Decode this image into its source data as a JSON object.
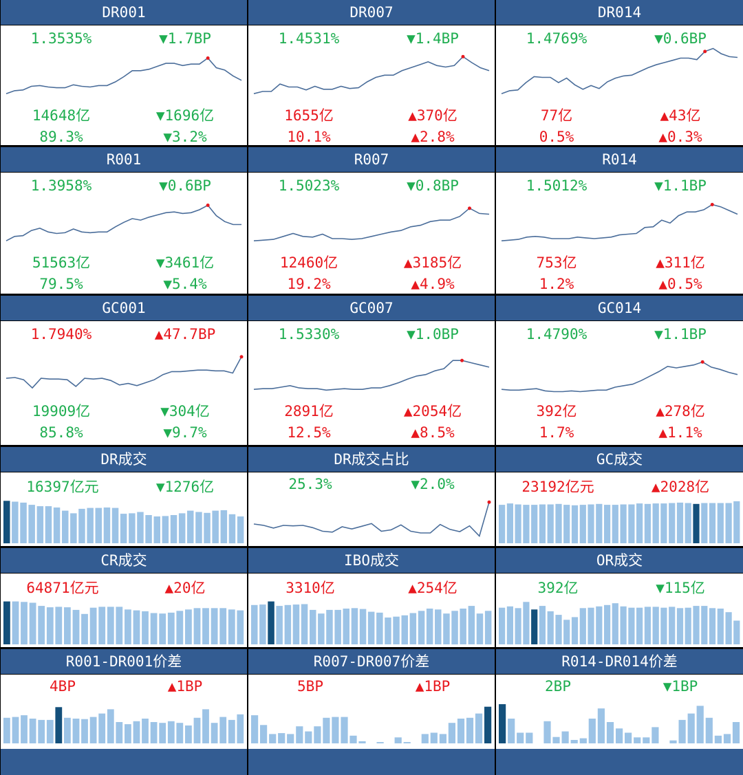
{
  "colors": {
    "header": "#335c92",
    "up": "#e8181e",
    "down": "#1fae51",
    "line": "#4a6d9a",
    "bar": "#9cc3e6",
    "bar_hi": "#14507b",
    "peak": "#e8181e"
  },
  "rows": [
    {
      "panels": [
        {
          "title": "DR001",
          "rate": "1.3535%",
          "rate_color": "down",
          "rate_chg": "▼1.7BP",
          "rate_chg_color": "down",
          "vol": "14648亿",
          "vol_color": "down",
          "vol_chg": "▼1696亿",
          "vol_chg_color": "down",
          "share": "89.3%",
          "share_color": "down",
          "share_chg": "▼3.2%",
          "share_chg_color": "down"
        },
        {
          "title": "DR007",
          "rate": "1.4531%",
          "rate_color": "down",
          "rate_chg": "▼1.4BP",
          "rate_chg_color": "down",
          "vol": "1655亿",
          "vol_color": "up",
          "vol_chg": "▲370亿",
          "vol_chg_color": "up",
          "share": "10.1%",
          "share_color": "up",
          "share_chg": "▲2.8%",
          "share_chg_color": "up"
        },
        {
          "title": "DR014",
          "rate": "1.4769%",
          "rate_color": "down",
          "rate_chg": "▼0.6BP",
          "rate_chg_color": "down",
          "vol": "77亿",
          "vol_color": "up",
          "vol_chg": "▲43亿",
          "vol_chg_color": "up",
          "share": "0.5%",
          "share_color": "up",
          "share_chg": "▲0.3%",
          "share_chg_color": "up"
        }
      ]
    },
    {
      "panels": [
        {
          "title": "R001",
          "rate": "1.3958%",
          "rate_color": "down",
          "rate_chg": "▼0.6BP",
          "rate_chg_color": "down",
          "vol": "51563亿",
          "vol_color": "down",
          "vol_chg": "▼3461亿",
          "vol_chg_color": "down",
          "share": "79.5%",
          "share_color": "down",
          "share_chg": "▼5.4%",
          "share_chg_color": "down"
        },
        {
          "title": "R007",
          "rate": "1.5023%",
          "rate_color": "down",
          "rate_chg": "▼0.8BP",
          "rate_chg_color": "down",
          "vol": "12460亿",
          "vol_color": "up",
          "vol_chg": "▲3185亿",
          "vol_chg_color": "up",
          "share": "19.2%",
          "share_color": "up",
          "share_chg": "▲4.9%",
          "share_chg_color": "up"
        },
        {
          "title": "R014",
          "rate": "1.5012%",
          "rate_color": "down",
          "rate_chg": "▼1.1BP",
          "rate_chg_color": "down",
          "vol": "753亿",
          "vol_color": "up",
          "vol_chg": "▲311亿",
          "vol_chg_color": "up",
          "share": "1.2%",
          "share_color": "up",
          "share_chg": "▲0.5%",
          "share_chg_color": "up"
        }
      ]
    },
    {
      "panels": [
        {
          "title": "GC001",
          "rate": "1.7940%",
          "rate_color": "up",
          "rate_chg": "▲47.7BP",
          "rate_chg_color": "up",
          "vol": "19909亿",
          "vol_color": "down",
          "vol_chg": "▼304亿",
          "vol_chg_color": "down",
          "share": "85.8%",
          "share_color": "down",
          "share_chg": "▼9.7%",
          "share_chg_color": "down"
        },
        {
          "title": "GC007",
          "rate": "1.5330%",
          "rate_color": "down",
          "rate_chg": "▼1.0BP",
          "rate_chg_color": "down",
          "vol": "2891亿",
          "vol_color": "up",
          "vol_chg": "▲2054亿",
          "vol_chg_color": "up",
          "share": "12.5%",
          "share_color": "up",
          "share_chg": "▲8.5%",
          "share_chg_color": "up"
        },
        {
          "title": "GC014",
          "rate": "1.4790%",
          "rate_color": "down",
          "rate_chg": "▼1.1BP",
          "rate_chg_color": "down",
          "vol": "392亿",
          "vol_color": "up",
          "vol_chg": "▲278亿",
          "vol_chg_color": "up",
          "share": "1.7%",
          "share_color": "up",
          "share_chg": "▲1.1%",
          "share_chg_color": "up"
        }
      ]
    },
    {
      "panels": [
        {
          "title": "DR成交",
          "value": "16397亿元",
          "value_color": "down",
          "chg": "▼1276亿",
          "chg_color": "down"
        },
        {
          "title": "DR成交占比",
          "value": "25.3%",
          "value_color": "down",
          "chg": "▼2.0%",
          "chg_color": "down"
        },
        {
          "title": "GC成交",
          "value": "23192亿元",
          "value_color": "up",
          "chg": "▲2028亿",
          "chg_color": "up"
        }
      ]
    },
    {
      "panels": [
        {
          "title": "CR成交",
          "value": "64871亿元",
          "value_color": "up",
          "chg": "▲20亿",
          "chg_color": "up"
        },
        {
          "title": "IBO成交",
          "value": "3310亿",
          "value_color": "up",
          "chg": "▲254亿",
          "chg_color": "up"
        },
        {
          "title": "OR成交",
          "value": "392亿",
          "value_color": "down",
          "chg": "▼115亿",
          "chg_color": "down"
        }
      ]
    },
    {
      "panels": [
        {
          "title": "R001-DR001价差",
          "value": "4BP",
          "value_color": "up",
          "chg": "▲1BP",
          "chg_color": "up"
        },
        {
          "title": "R007-DR007价差",
          "value": "5BP",
          "value_color": "up",
          "chg": "▲1BP",
          "chg_color": "up"
        },
        {
          "title": "R014-DR014价差",
          "value": "2BP",
          "value_color": "down",
          "chg": "▼1BP",
          "chg_color": "down"
        }
      ]
    }
  ],
  "chart_data": [
    {
      "type": "line",
      "panel": "DR001",
      "values": [
        1.2,
        1.24,
        1.25,
        1.3,
        1.31,
        1.29,
        1.28,
        1.28,
        1.32,
        1.3,
        1.29,
        1.31,
        1.31,
        1.36,
        1.43,
        1.51,
        1.51,
        1.53,
        1.57,
        1.61,
        1.61,
        1.58,
        1.6,
        1.6,
        1.68,
        1.55,
        1.52,
        1.44,
        1.38
      ],
      "peak_index": 24
    },
    {
      "type": "line",
      "panel": "DR007",
      "values": [
        1.2,
        1.23,
        1.23,
        1.33,
        1.29,
        1.29,
        1.25,
        1.3,
        1.26,
        1.26,
        1.3,
        1.27,
        1.28,
        1.36,
        1.42,
        1.45,
        1.45,
        1.51,
        1.55,
        1.59,
        1.63,
        1.58,
        1.56,
        1.58,
        1.7,
        1.62,
        1.55,
        1.51
      ],
      "peak_index": 24
    },
    {
      "type": "line",
      "panel": "DR014",
      "values": [
        1.2,
        1.24,
        1.25,
        1.35,
        1.43,
        1.42,
        1.42,
        1.35,
        1.41,
        1.32,
        1.26,
        1.31,
        1.27,
        1.36,
        1.41,
        1.44,
        1.45,
        1.5,
        1.55,
        1.59,
        1.62,
        1.65,
        1.68,
        1.68,
        1.66,
        1.77,
        1.81,
        1.74,
        1.7,
        1.69
      ],
      "peak_index": 25
    },
    {
      "type": "line",
      "panel": "R001",
      "values": [
        1.2,
        1.26,
        1.27,
        1.34,
        1.37,
        1.32,
        1.3,
        1.31,
        1.36,
        1.32,
        1.31,
        1.32,
        1.32,
        1.39,
        1.45,
        1.5,
        1.48,
        1.52,
        1.55,
        1.58,
        1.59,
        1.57,
        1.58,
        1.62,
        1.68,
        1.54,
        1.46,
        1.42,
        1.42
      ],
      "peak_index": 24
    },
    {
      "type": "line",
      "panel": "R007",
      "values": [
        1.2,
        1.21,
        1.22,
        1.26,
        1.3,
        1.26,
        1.25,
        1.29,
        1.23,
        1.23,
        1.22,
        1.23,
        1.26,
        1.29,
        1.32,
        1.34,
        1.39,
        1.41,
        1.46,
        1.48,
        1.48,
        1.53,
        1.64,
        1.57,
        1.56
      ],
      "peak_index": 22
    },
    {
      "type": "line",
      "panel": "R014",
      "values": [
        1.2,
        1.21,
        1.22,
        1.25,
        1.26,
        1.25,
        1.23,
        1.23,
        1.23,
        1.25,
        1.24,
        1.23,
        1.24,
        1.25,
        1.28,
        1.29,
        1.3,
        1.38,
        1.39,
        1.48,
        1.44,
        1.54,
        1.59,
        1.59,
        1.62,
        1.69,
        1.66,
        1.61,
        1.56
      ],
      "peak_index": 25
    },
    {
      "type": "line",
      "panel": "GC001",
      "values": [
        1.35,
        1.36,
        1.33,
        1.22,
        1.35,
        1.34,
        1.34,
        1.33,
        1.24,
        1.35,
        1.34,
        1.35,
        1.32,
        1.26,
        1.28,
        1.25,
        1.29,
        1.33,
        1.4,
        1.44,
        1.44,
        1.45,
        1.46,
        1.46,
        1.45,
        1.45,
        1.42,
        1.64
      ],
      "peak_index": 27
    },
    {
      "type": "line",
      "panel": "GC007",
      "values": [
        1.2,
        1.21,
        1.21,
        1.23,
        1.25,
        1.22,
        1.21,
        1.21,
        1.19,
        1.2,
        1.21,
        1.2,
        1.2,
        1.22,
        1.22,
        1.25,
        1.29,
        1.34,
        1.38,
        1.4,
        1.45,
        1.48,
        1.59,
        1.59,
        1.56,
        1.53,
        1.5
      ],
      "peak_index": 23
    },
    {
      "type": "line",
      "panel": "GC014",
      "values": [
        1.2,
        1.19,
        1.19,
        1.2,
        1.21,
        1.18,
        1.17,
        1.17,
        1.18,
        1.17,
        1.18,
        1.19,
        1.19,
        1.23,
        1.25,
        1.27,
        1.32,
        1.38,
        1.44,
        1.51,
        1.49,
        1.51,
        1.53,
        1.57,
        1.5,
        1.47,
        1.43,
        1.4
      ],
      "peak_index": 23
    },
    {
      "type": "bar",
      "panel": "DR成交",
      "values": [
        0.95,
        0.93,
        0.91,
        0.86,
        0.83,
        0.83,
        0.8,
        0.73,
        0.67,
        0.77,
        0.79,
        0.79,
        0.8,
        0.79,
        0.66,
        0.67,
        0.7,
        0.63,
        0.6,
        0.61,
        0.63,
        0.67,
        0.73,
        0.7,
        0.68,
        0.73,
        0.74,
        0.65,
        0.6
      ],
      "highlight_index": 0
    },
    {
      "type": "line",
      "panel": "DR成交占比",
      "values": [
        0.43,
        0.4,
        0.34,
        0.4,
        0.39,
        0.4,
        0.35,
        0.27,
        0.25,
        0.37,
        0.32,
        0.38,
        0.44,
        0.27,
        0.3,
        0.41,
        0.27,
        0.23,
        0.23,
        0.42,
        0.31,
        0.26,
        0.39,
        0.16,
        0.92
      ],
      "peak_index": 24
    },
    {
      "type": "bar",
      "panel": "GC成交",
      "values": [
        0.86,
        0.89,
        0.87,
        0.86,
        0.86,
        0.87,
        0.87,
        0.88,
        0.86,
        0.85,
        0.86,
        0.87,
        0.88,
        0.86,
        0.86,
        0.87,
        0.87,
        0.89,
        0.88,
        0.89,
        0.89,
        0.9,
        0.91,
        0.9,
        0.88,
        0.9,
        0.9,
        0.9,
        0.9,
        0.94
      ],
      "highlight_index": 24
    },
    {
      "type": "bar",
      "panel": "CR成交",
      "values": [
        0.96,
        0.96,
        0.95,
        0.93,
        0.86,
        0.83,
        0.84,
        0.83,
        0.77,
        0.68,
        0.82,
        0.84,
        0.84,
        0.84,
        0.78,
        0.76,
        0.74,
        0.7,
        0.69,
        0.71,
        0.75,
        0.78,
        0.81,
        0.81,
        0.81,
        0.81,
        0.78,
        0.76
      ],
      "highlight_index": 0
    },
    {
      "type": "bar",
      "panel": "IBO成交",
      "values": [
        0.88,
        0.89,
        0.96,
        0.86,
        0.88,
        0.89,
        0.9,
        0.77,
        0.69,
        0.77,
        0.77,
        0.8,
        0.81,
        0.79,
        0.73,
        0.71,
        0.6,
        0.62,
        0.65,
        0.7,
        0.75,
        0.8,
        0.78,
        0.69,
        0.75,
        0.8,
        0.86,
        0.69,
        0.75
      ],
      "highlight_index": 2
    },
    {
      "type": "bar",
      "panel": "OR成交",
      "values": [
        0.82,
        0.85,
        0.81,
        0.95,
        0.78,
        0.86,
        0.74,
        0.66,
        0.55,
        0.61,
        0.81,
        0.82,
        0.85,
        0.88,
        0.92,
        0.85,
        0.82,
        0.82,
        0.84,
        0.84,
        0.82,
        0.84,
        0.81,
        0.82,
        0.86,
        0.86,
        0.81,
        0.8,
        0.72,
        0.53
      ],
      "highlight_index": 4
    },
    {
      "type": "bar",
      "panel": "R001-DR001价差",
      "values": [
        0.6,
        0.62,
        0.66,
        0.58,
        0.55,
        0.55,
        0.85,
        0.6,
        0.58,
        0.57,
        0.62,
        0.7,
        0.8,
        0.5,
        0.45,
        0.52,
        0.58,
        0.5,
        0.48,
        0.52,
        0.48,
        0.42,
        0.6,
        0.8,
        0.48,
        0.62,
        0.55,
        0.68
      ],
      "highlight_index": 6
    },
    {
      "type": "bar",
      "panel": "R007-DR007价差",
      "values": [
        0.66,
        0.43,
        0.22,
        0.24,
        0.22,
        0.4,
        0.28,
        0.4,
        0.6,
        0.62,
        0.62,
        0.18,
        0.05,
        0.0,
        0.03,
        0.0,
        0.14,
        0.03,
        0.0,
        0.22,
        0.25,
        0.22,
        0.48,
        0.58,
        0.6,
        0.7,
        0.86
      ],
      "highlight_index": 26
    },
    {
      "type": "bar",
      "panel": "R014-DR014价差",
      "values": [
        0.92,
        0.58,
        0.25,
        0.25,
        0.0,
        0.52,
        0.15,
        0.28,
        0.08,
        0.12,
        0.58,
        0.82,
        0.5,
        0.35,
        0.25,
        0.14,
        0.14,
        0.38,
        0.0,
        0.07,
        0.55,
        0.7,
        0.88,
        0.6,
        0.18,
        0.22,
        0.5
      ],
      "highlight_index": 0
    }
  ]
}
